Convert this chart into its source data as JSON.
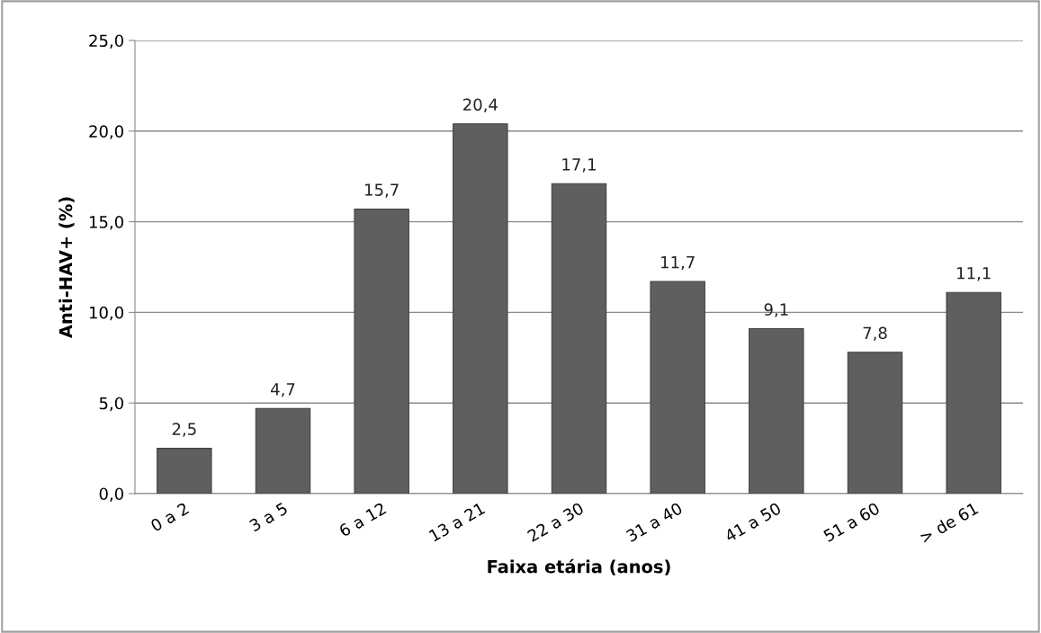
{
  "chart_data": {
    "type": "bar",
    "xlabel": "Faixa etária (anos)",
    "ylabel": "Anti-HAV+ (%)",
    "categories": [
      "0 a 2",
      "3 a 5",
      "6 a 12",
      "13 a 21",
      "22 a 30",
      "31 a 40",
      "41 a 50",
      "51 a 60",
      "> de 61"
    ],
    "values": [
      2.5,
      4.7,
      15.7,
      20.4,
      17.1,
      11.7,
      9.1,
      7.8,
      11.1
    ],
    "value_labels": [
      "2,5",
      "4,7",
      "15,7",
      "20,4",
      "17,1",
      "11,7",
      "9,1",
      "7,8",
      "11,1"
    ],
    "color": "#5f5f5f",
    "ylim": [
      0,
      25
    ],
    "yticks": [
      {
        "value": 0,
        "label": "0,0"
      },
      {
        "value": 5,
        "label": "5,0"
      },
      {
        "value": 10,
        "label": "10,0"
      },
      {
        "value": 15,
        "label": "15,0"
      },
      {
        "value": 20,
        "label": "20,0"
      },
      {
        "value": 25,
        "label": "25,0"
      }
    ],
    "grid": "y"
  }
}
